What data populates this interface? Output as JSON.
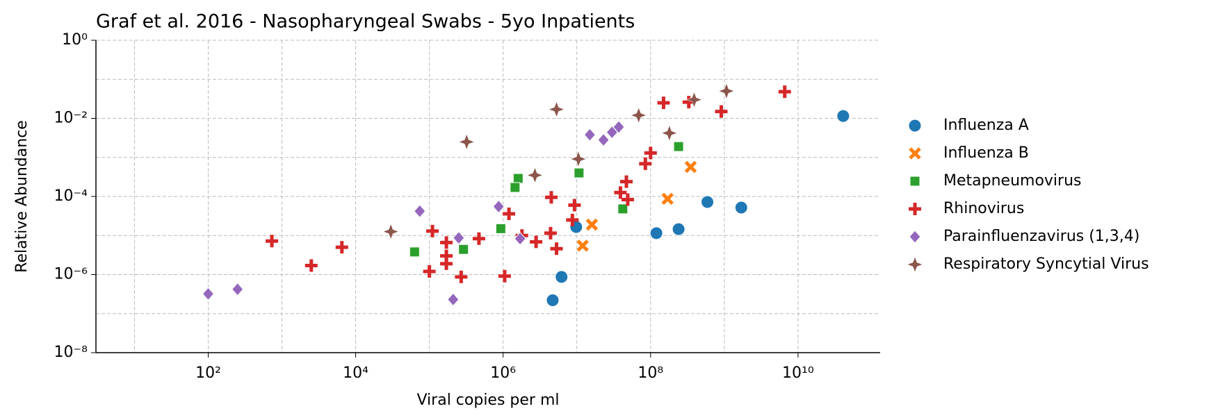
{
  "chart_data": {
    "type": "scatter",
    "title": "Graf et al. 2016 - Nasopharyngeal Swabs - 5yo Inpatients",
    "x_label": "Viral copies per ml",
    "y_label": "Relative Abundance",
    "log_x": true,
    "log_y": true,
    "grid": true,
    "xlim": [
      3,
      130000000000
    ],
    "ylim": [
      1e-08,
      1
    ],
    "xticks": [
      {
        "value": 100,
        "label": "10²"
      },
      {
        "value": 10000,
        "label": "10⁴"
      },
      {
        "value": 1000000,
        "label": "10⁶"
      },
      {
        "value": 100000000,
        "label": "10⁸"
      },
      {
        "value": 10000000000,
        "label": "10¹⁰"
      }
    ],
    "xgrid_minor": [
      10,
      1000,
      100000,
      10000000,
      1000000000
    ],
    "yticks": [
      {
        "value": 1,
        "label": "10⁰"
      },
      {
        "value": 0.01,
        "label": "10⁻²"
      },
      {
        "value": 0.0001,
        "label": "10⁻⁴"
      },
      {
        "value": 1e-06,
        "label": "10⁻⁶"
      },
      {
        "value": 1e-08,
        "label": "10⁻⁸"
      }
    ],
    "ygrid_minor": [
      0.1,
      0.001,
      1e-05,
      1e-07
    ],
    "legend": "outside-right",
    "series": [
      {
        "name": "Influenza A",
        "color": "#1f77b4",
        "marker": "circle",
        "x": [
          41000000000,
          590000000,
          1700000000,
          240000000,
          120000000,
          9800000,
          6200000,
          4700000
        ],
        "values": [
          0.0115,
          7.2e-05,
          5.2e-05,
          1.45e-05,
          1.15e-05,
          1.65e-05,
          8.7e-07,
          2.2e-07
        ]
      },
      {
        "name": "Influenza B",
        "color": "#ff7f0e",
        "marker": "x",
        "x": [
          350000000,
          170000000,
          16000000,
          12000000
        ],
        "values": [
          0.00057,
          8.7e-05,
          1.9e-05,
          5.5e-06
        ]
      },
      {
        "name": "Metapneumovirus",
        "color": "#2ca02c",
        "marker": "square",
        "x": [
          240000000,
          10700000,
          1600000,
          1450000,
          930000,
          42000000,
          63000,
          290000
        ],
        "values": [
          0.0019,
          0.0004,
          0.00029,
          0.00017,
          1.5e-05,
          4.8e-05,
          3.8e-06,
          4.4e-06
        ]
      },
      {
        "name": "Rhinovirus",
        "color": "#d62728",
        "marker": "plus",
        "x": [
          6600000000,
          150000000,
          330000000,
          910000000,
          100000000,
          85000000,
          47000000,
          39000000,
          49000000,
          4500000,
          9300000,
          8700000,
          1200000,
          1800000,
          2800000,
          4400000,
          5300000,
          470000,
          110000,
          170000,
          170000,
          170000,
          270000,
          100000,
          1050000,
          6500,
          730,
          2500
        ],
        "values": [
          0.048,
          0.025,
          0.026,
          0.015,
          0.0013,
          0.00069,
          0.00024,
          0.000126,
          8.3e-05,
          9.5e-05,
          6e-05,
          2.5e-05,
          3.6e-05,
          1e-05,
          6.9e-06,
          1.15e-05,
          4.6e-06,
          8.3e-06,
          1.3e-05,
          6.6e-06,
          3e-06,
          1.9e-06,
          8.7e-07,
          1.2e-06,
          9.1e-07,
          5e-06,
          7.2e-06,
          1.7e-06
        ]
      },
      {
        "name": "Parainfluenzavirus (1,3,4)",
        "color": "#9467bd",
        "marker": "diamond",
        "x": [
          100,
          250,
          74000,
          250000,
          210000,
          870000,
          1700000,
          15000000,
          23000000,
          30000000,
          37000000
        ],
        "values": [
          3.2e-07,
          4.2e-07,
          4.2e-05,
          8.7e-06,
          2.3e-07,
          5.5e-05,
          8.3e-06,
          0.0038,
          0.0028,
          0.0044,
          0.006
        ]
      },
      {
        "name": "Respiratory Syncytial Virus",
        "color": "#8c564b",
        "marker": "star",
        "x": [
          1070000000,
          390000000,
          69000000,
          180000000,
          5300000,
          10500000,
          2700000,
          320000,
          30000
        ],
        "values": [
          0.05,
          0.03,
          0.012,
          0.0042,
          0.017,
          0.00091,
          0.00035,
          0.0025,
          1.26e-05
        ]
      }
    ]
  }
}
